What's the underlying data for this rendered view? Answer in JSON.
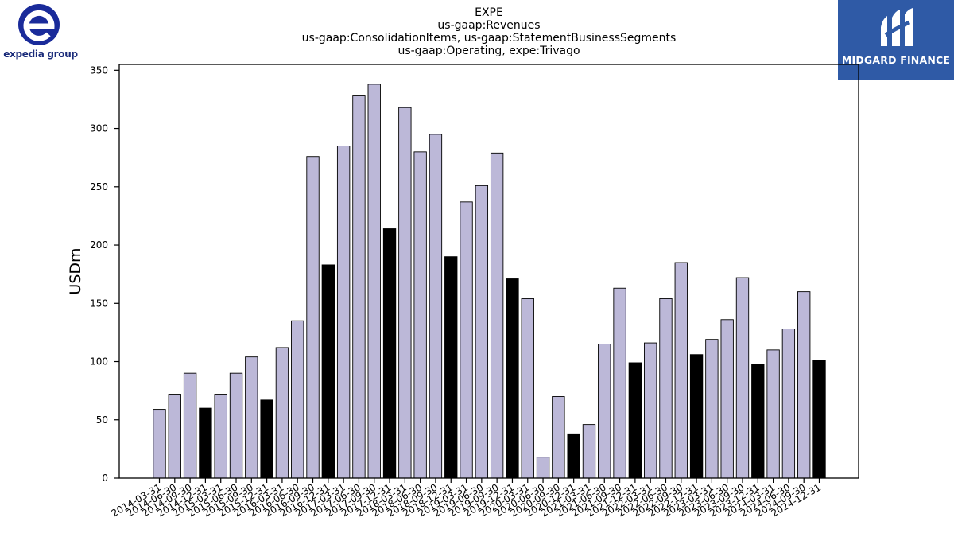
{
  "logos": {
    "left_text": "expedia group",
    "right_text": "MIDGARD FINANCE"
  },
  "colors": {
    "bar_quarter": "#bcb8d8",
    "bar_year_end": "#000000",
    "edge": "#000000",
    "brand_left": "#1a2b9a",
    "brand_right": "#2f5aa6"
  },
  "chart_data": {
    "type": "bar",
    "title": "EXPE",
    "subtitle": [
      "us-gaap:Revenues",
      "us-gaap:ConsolidationItems, us-gaap:StatementBusinessSegments",
      "us-gaap:Operating, expe:Trivago"
    ],
    "xlabel": "",
    "ylabel": "USDm",
    "ylim": [
      0,
      355
    ],
    "yticks": [
      0,
      50,
      100,
      150,
      200,
      250,
      300,
      350
    ],
    "grid": false,
    "categories": [
      "2014-03-31",
      "2014-06-30",
      "2014-09-30",
      "2014-12-31",
      "2015-03-31",
      "2015-06-30",
      "2015-09-30",
      "2015-12-31",
      "2016-03-31",
      "2016-06-30",
      "2016-09-30",
      "2016-12-31",
      "2017-03-31",
      "2017-06-30",
      "2017-09-30",
      "2017-12-31",
      "2018-03-31",
      "2018-06-30",
      "2018-09-30",
      "2018-12-31",
      "2019-03-31",
      "2019-06-30",
      "2019-09-30",
      "2019-12-31",
      "2020-03-31",
      "2020-06-30",
      "2020-09-30",
      "2020-12-31",
      "2021-03-31",
      "2021-06-30",
      "2021-09-30",
      "2021-12-31",
      "2022-03-31",
      "2022-06-30",
      "2022-09-30",
      "2022-12-31",
      "2023-03-31",
      "2023-06-30",
      "2023-09-30",
      "2023-12-31",
      "2024-03-31",
      "2024-06-30",
      "2024-09-30",
      "2024-12-31"
    ],
    "values": [
      59,
      72,
      90,
      60,
      72,
      90,
      104,
      67,
      112,
      135,
      276,
      183,
      285,
      328,
      338,
      214,
      318,
      280,
      295,
      190,
      237,
      251,
      279,
      171,
      154,
      18,
      70,
      38,
      46,
      115,
      163,
      99,
      116,
      154,
      185,
      106,
      119,
      136,
      172,
      98,
      110,
      128,
      160,
      101
    ]
  }
}
